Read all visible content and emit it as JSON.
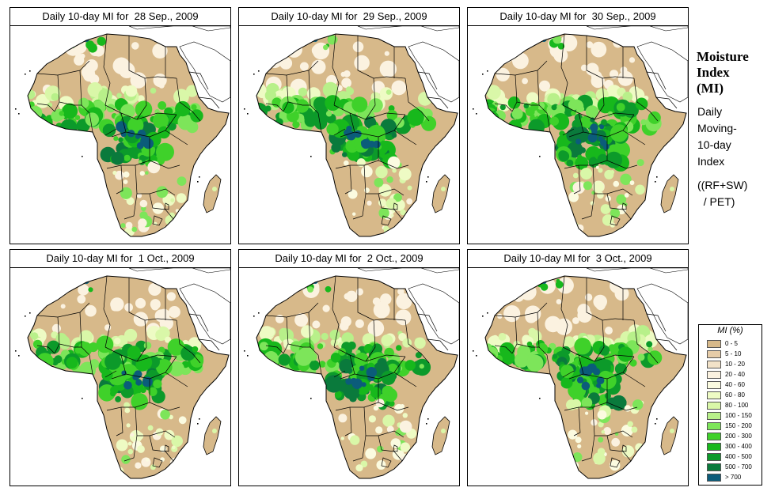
{
  "panels": [
    {
      "title": "Daily 10-day MI for  28 Sep., 2009"
    },
    {
      "title": "Daily 10-day MI for  29 Sep., 2009"
    },
    {
      "title": "Daily 10-day MI for  30 Sep., 2009"
    },
    {
      "title": "Daily 10-day MI for  1 Oct., 2009"
    },
    {
      "title": "Daily 10-day MI for  2 Oct., 2009"
    },
    {
      "title": "Daily 10-day MI for  3 Oct., 2009"
    }
  ],
  "sidebar": {
    "title_lines": [
      "Moisture",
      "Index",
      "(MI)"
    ],
    "desc_lines": [
      "Daily",
      "Moving-",
      "10-day",
      "Index"
    ],
    "formula_lines": [
      "((RF+SW)",
      "  / PET)"
    ]
  },
  "legend": {
    "title": "MI (%)",
    "classes": [
      {
        "label": "0 - 5",
        "color": "#d7b98a"
      },
      {
        "label": "5 - 10",
        "color": "#e6cca8"
      },
      {
        "label": "10 - 20",
        "color": "#f2e2c8"
      },
      {
        "label": "20 - 40",
        "color": "#fbf2e0"
      },
      {
        "label": "40 - 60",
        "color": "#fbfbe0"
      },
      {
        "label": "60 - 80",
        "color": "#eefbc4"
      },
      {
        "label": "80 - 100",
        "color": "#d9f7a8"
      },
      {
        "label": "100 - 150",
        "color": "#b8f08a"
      },
      {
        "label": "150 - 200",
        "color": "#7de55a"
      },
      {
        "label": "200 - 300",
        "color": "#3fd12a"
      },
      {
        "label": "300 - 400",
        "color": "#17b81c"
      },
      {
        "label": "400 - 500",
        "color": "#0c9a2a"
      },
      {
        "label": "500 - 700",
        "color": "#0a7a3c"
      },
      {
        "label": "> 700",
        "color": "#0b5c7a"
      }
    ]
  },
  "colors": {
    "land_dry": "#d7b98a",
    "outside": "#ffffff",
    "border": "#000000"
  }
}
